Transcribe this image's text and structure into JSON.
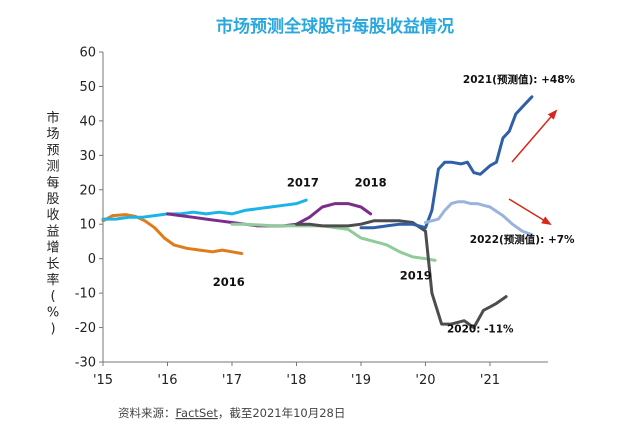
{
  "chart_data": {
    "type": "line",
    "title": "市场预测全球股市每股收益情况",
    "ylabel": "市场预测每股收益增长率(%)",
    "ylim": [
      -30,
      60
    ],
    "yticks": [
      60,
      50,
      40,
      30,
      20,
      10,
      0,
      -10,
      -20,
      -30
    ],
    "xlim": [
      2015.0,
      2021.9
    ],
    "xticks": [
      {
        "x": 2015.0,
        "label": "'15"
      },
      {
        "x": 2016.0,
        "label": "'16"
      },
      {
        "x": 2017.0,
        "label": "'17"
      },
      {
        "x": 2018.0,
        "label": "'18"
      },
      {
        "x": 2019.0,
        "label": "'19"
      },
      {
        "x": 2020.0,
        "label": "'20"
      },
      {
        "x": 2021.0,
        "label": "'21"
      }
    ],
    "grid": false,
    "series": [
      {
        "name": "2016",
        "color": "#e07b1a",
        "x": [
          2015.0,
          2015.15,
          2015.35,
          2015.5,
          2015.65,
          2015.8,
          2015.95,
          2016.1,
          2016.3,
          2016.5,
          2016.7,
          2016.85,
          2017.0,
          2017.15
        ],
        "y": [
          11,
          12.5,
          12.8,
          12.3,
          11,
          9,
          6,
          4,
          3,
          2.5,
          2,
          2.5,
          2,
          1.5
        ]
      },
      {
        "name": "2017",
        "color": "#1ab4e8",
        "x": [
          2015.0,
          2015.2,
          2015.4,
          2015.6,
          2015.8,
          2016.0,
          2016.2,
          2016.4,
          2016.6,
          2016.8,
          2017.0,
          2017.2,
          2017.4,
          2017.6,
          2017.8,
          2018.0,
          2018.15
        ],
        "y": [
          11.5,
          11.5,
          12,
          12,
          12.5,
          13,
          13,
          13.5,
          13,
          13.5,
          13,
          14,
          14.5,
          15,
          15.5,
          16,
          17
        ]
      },
      {
        "name": "2018",
        "color": "#7b2d8b",
        "x": [
          2016.0,
          2016.2,
          2016.4,
          2016.6,
          2016.8,
          2017.0,
          2017.2,
          2017.4,
          2017.6,
          2017.8,
          2018.0,
          2018.2,
          2018.4,
          2018.6,
          2018.8,
          2019.0,
          2019.15
        ],
        "y": [
          13,
          12.5,
          12,
          11.5,
          11,
          10.5,
          10,
          9.5,
          9.5,
          9.5,
          10,
          12,
          15,
          16,
          16,
          15,
          13
        ]
      },
      {
        "name": "2019",
        "color": "#8fcc9a",
        "x": [
          2017.0,
          2017.2,
          2017.4,
          2017.6,
          2017.8,
          2018.0,
          2018.2,
          2018.4,
          2018.6,
          2018.8,
          2019.0,
          2019.2,
          2019.4,
          2019.6,
          2019.8,
          2020.0,
          2020.15
        ],
        "y": [
          10,
          10,
          9.8,
          9.6,
          9.5,
          9.5,
          9.5,
          9.5,
          9,
          8.5,
          6,
          5,
          4,
          2,
          0.5,
          0,
          -0.5
        ]
      },
      {
        "name": "2020: -11%",
        "color": "#4d4d4d",
        "x": [
          2018.0,
          2018.2,
          2018.4,
          2018.6,
          2018.8,
          2019.0,
          2019.2,
          2019.4,
          2019.6,
          2019.8,
          2020.0,
          2020.1,
          2020.25,
          2020.4,
          2020.6,
          2020.75,
          2020.9,
          2021.0,
          2021.1,
          2021.25
        ],
        "y": [
          10,
          10,
          9.5,
          9.5,
          9.5,
          10,
          11,
          11,
          11,
          10.5,
          8,
          -10,
          -19,
          -19,
          -18,
          -20,
          -15,
          -14,
          -13,
          -11
        ]
      },
      {
        "name": "2021(预测值): +48%",
        "color": "#2e5fa8",
        "x": [
          2019.0,
          2019.2,
          2019.4,
          2019.6,
          2019.8,
          2020.0,
          2020.1,
          2020.2,
          2020.3,
          2020.4,
          2020.55,
          2020.65,
          2020.75,
          2020.85,
          2021.0,
          2021.1,
          2021.2,
          2021.3,
          2021.4,
          2021.55,
          2021.65
        ],
        "y": [
          9,
          9,
          9.5,
          10,
          10,
          9,
          14,
          26,
          28,
          28,
          27.5,
          28,
          25,
          24.5,
          27,
          28,
          35,
          37,
          42,
          45,
          47
        ]
      },
      {
        "name": "2022(预测值): +7%",
        "color": "#9ab3dc",
        "x": [
          2020.0,
          2020.1,
          2020.2,
          2020.3,
          2020.4,
          2020.5,
          2020.6,
          2020.7,
          2020.8,
          2020.9,
          2021.0,
          2021.2,
          2021.35,
          2021.5,
          2021.65
        ],
        "y": [
          10.5,
          11,
          11.5,
          14,
          16,
          16.5,
          16.5,
          16,
          16,
          15.5,
          15,
          12.5,
          10,
          8,
          7
        ]
      }
    ],
    "annotations": [
      {
        "text": "2016",
        "x": 2016.95,
        "y": -8
      },
      {
        "text": "2017",
        "x": 2018.1,
        "y": 21
      },
      {
        "text": "2018",
        "x": 2019.15,
        "y": 21
      },
      {
        "text": "2019",
        "x": 2019.85,
        "y": -6
      },
      {
        "text": "2020: -11%",
        "x": 2020.85,
        "y": -21.5
      },
      {
        "text": "2021(预测值): +48%",
        "x": 2021.45,
        "y": 51
      },
      {
        "text": "2022(预测值): +7%",
        "x": 2021.5,
        "y": 4.5
      }
    ],
    "source": {
      "prefix": "资料来源：",
      "name": "FactSet",
      "suffix": "，截至2021年10月28日"
    },
    "colors": {
      "title": "#29a8df",
      "arrow": "#d9261c"
    }
  }
}
